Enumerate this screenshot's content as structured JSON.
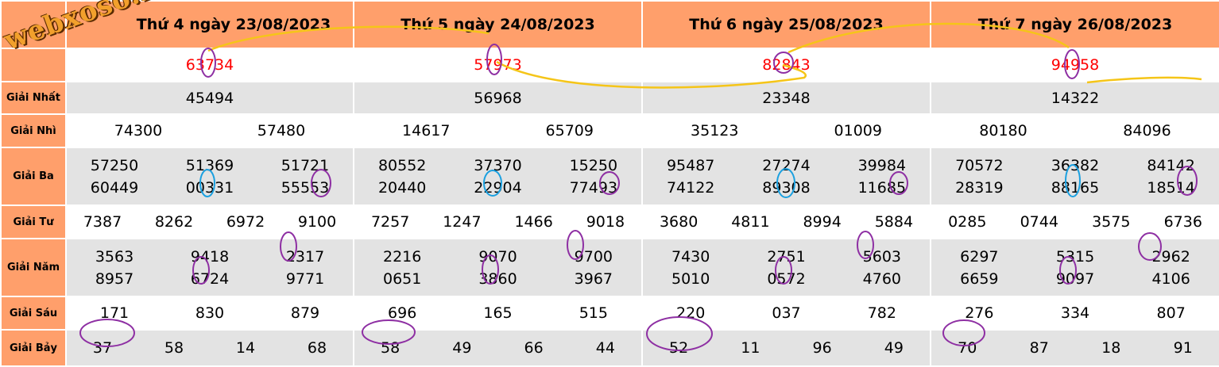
{
  "watermark": "webxoso.net",
  "labels": {
    "nhat": "Giải Nhất",
    "nhi": "Giải Nhì",
    "ba": "Giải Ba",
    "tu": "Giải Tư",
    "nam": "Giải Năm",
    "sau": "Giải Sáu",
    "bay": "Giải Bảy"
  },
  "days": [
    {
      "header": "Thứ 4 ngày 23/08/2023",
      "special": "63734",
      "nhat": "45494",
      "nhi": [
        "74300",
        "57480"
      ],
      "ba": [
        "57250",
        "51369",
        "51721",
        "60449",
        "00331",
        "55553"
      ],
      "tu": [
        "7387",
        "8262",
        "6972",
        "9100"
      ],
      "nam": [
        "3563",
        "9418",
        "2317",
        "8957",
        "6724",
        "9771"
      ],
      "sau": [
        "171",
        "830",
        "879"
      ],
      "bay": [
        "37",
        "58",
        "14",
        "68"
      ]
    },
    {
      "header": "Thứ 5 ngày 24/08/2023",
      "special": "57973",
      "nhat": "56968",
      "nhi": [
        "14617",
        "65709"
      ],
      "ba": [
        "80552",
        "37370",
        "15250",
        "20440",
        "22904",
        "77493"
      ],
      "tu": [
        "7257",
        "1247",
        "1466",
        "9018"
      ],
      "nam": [
        "2216",
        "9070",
        "9700",
        "0651",
        "3860",
        "3967"
      ],
      "sau": [
        "696",
        "165",
        "515"
      ],
      "bay": [
        "58",
        "49",
        "66",
        "44"
      ]
    },
    {
      "header": "Thứ 6 ngày 25/08/2023",
      "special": "82843",
      "nhat": "23348",
      "nhi": [
        "35123",
        "01009"
      ],
      "ba": [
        "95487",
        "27274",
        "39984",
        "74122",
        "89308",
        "11685"
      ],
      "tu": [
        "3680",
        "4811",
        "8994",
        "5884"
      ],
      "nam": [
        "7430",
        "2751",
        "5603",
        "5010",
        "0572",
        "4760"
      ],
      "sau": [
        "220",
        "037",
        "782"
      ],
      "bay": [
        "52",
        "11",
        "96",
        "49"
      ]
    },
    {
      "header": "Thứ 7 ngày 26/08/2023",
      "special": "94958",
      "nhat": "14322",
      "nhi": [
        "80180",
        "84096"
      ],
      "ba": [
        "70572",
        "36382",
        "84142",
        "28319",
        "88165",
        "18514"
      ],
      "tu": [
        "0285",
        "0744",
        "3575",
        "6736"
      ],
      "nam": [
        "6297",
        "5315",
        "2962",
        "6659",
        "9097",
        "4106"
      ],
      "sau": [
        "276",
        "334",
        "807"
      ],
      "bay": [
        "70",
        "87",
        "18",
        "91"
      ]
    }
  ],
  "colors": {
    "header_bg": "#ff9f6b",
    "row_gray": "#e3e3e3",
    "special_text": "#ff0000",
    "circle_purple": "#8e2fa3",
    "circle_blue": "#1aa0e0",
    "line_yellow": "#f5c518"
  }
}
